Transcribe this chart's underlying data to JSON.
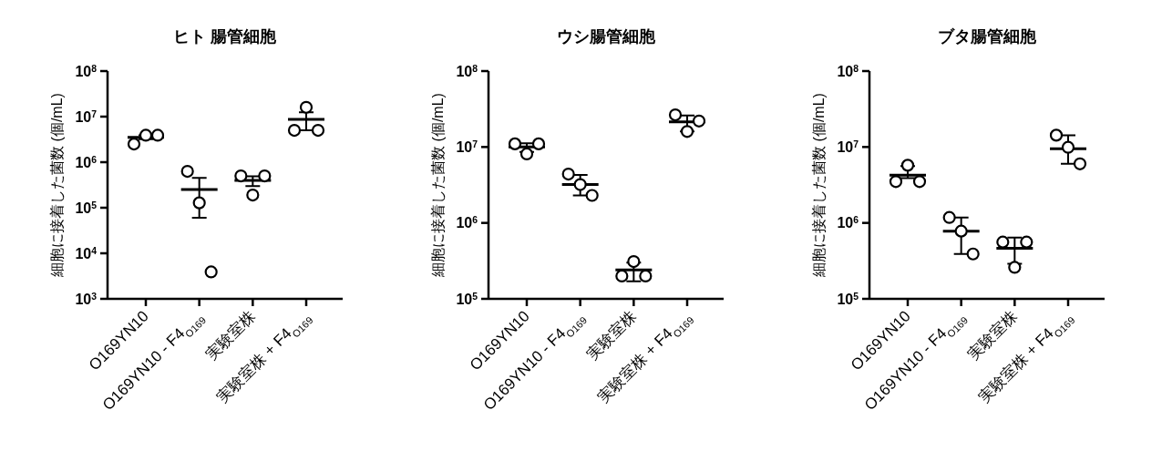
{
  "chart_data": [
    {
      "type": "scatter",
      "title": "ヒト 腸管細胞",
      "ylabel": "細胞に接着した菌数 (個/mL)",
      "categories": [
        "O169YN10",
        "O169YN10 - F4$_{O169}$",
        "実験室株",
        "実験室株 + F4$_{O169}$"
      ],
      "log": true,
      "ylim": [
        1000,
        100000000
      ],
      "yticks": [
        {
          "value": 1000,
          "label": "10$^{3}$"
        },
        {
          "value": 10000,
          "label": "10$^{4}$"
        },
        {
          "value": 100000,
          "label": "10$^{5}$"
        },
        {
          "value": 1000000,
          "label": "10$^{6}$"
        },
        {
          "value": 10000000,
          "label": "10$^{7}$"
        },
        {
          "value": 100000000,
          "label": "10$^{8}$"
        }
      ],
      "marker": "circle",
      "series": [
        {
          "type": "scatter",
          "color": "#000000",
          "x": [
            "O169YN10",
            "O169YN10",
            "O169YN10",
            "O169YN10 - F4$_{O169}$",
            "O169YN10 - F4$_{O169}$",
            "O169YN10 - F4$_{O169}$",
            "実験室株",
            "実験室株",
            "実験室株",
            "実験室株 + F4$_{O169}$",
            "実験室株 + F4$_{O169}$",
            "実験室株 + F4$_{O169}$"
          ],
          "values": [
            2500000,
            3900000,
            3900000,
            630000,
            128000,
            3900,
            500000,
            190000,
            500000,
            5000000,
            16000000,
            5000000
          ]
        },
        {
          "type": "box",
          "color": "#000000",
          "boxes": [
            {
              "low": 3200000,
              "q1": 3500000,
              "median": 3500000,
              "q3": 3500000,
              "high": 3900000
            },
            {
              "low": 60000,
              "q1": 250000,
              "median": 250000,
              "q3": 250000,
              "high": 450000
            },
            {
              "low": 300000,
              "q1": 400000,
              "median": 400000,
              "q3": 400000,
              "high": 490000
            },
            {
              "low": 5000000,
              "q1": 8700000,
              "median": 8700000,
              "q3": 8700000,
              "high": 12400000
            }
          ]
        }
      ]
    },
    {
      "type": "scatter",
      "title": "ウシ腸管細胞",
      "ylabel": "細胞に接着した菌数 (個/mL)",
      "categories": [
        "O169YN10",
        "O169YN10 - F4$_{O169}$",
        "実験室株",
        "実験室株 + F4$_{O169}$"
      ],
      "log": true,
      "ylim": [
        100000,
        100000000
      ],
      "yticks": [
        {
          "value": 100000,
          "label": "10$^{5}$"
        },
        {
          "value": 1000000,
          "label": "10$^{6}$"
        },
        {
          "value": 10000000,
          "label": "10$^{7}$"
        },
        {
          "value": 100000000,
          "label": "10$^{8}$"
        }
      ],
      "marker": "circle",
      "series": [
        {
          "type": "scatter",
          "color": "#000000",
          "x": [
            "O169YN10",
            "O169YN10",
            "O169YN10",
            "O169YN10 - F4$_{O169}$",
            "O169YN10 - F4$_{O169}$",
            "O169YN10 - F4$_{O169}$",
            "実験室株",
            "実験室株",
            "実験室株",
            "実験室株 + F4$_{O169}$",
            "実験室株 + F4$_{O169}$",
            "実験室株 + F4$_{O169}$"
          ],
          "values": [
            11000000,
            8100000,
            11000000,
            4400000,
            3200000,
            2300000,
            200000,
            310000,
            200000,
            26500000,
            16000000,
            22000000
          ]
        },
        {
          "type": "box",
          "color": "#000000",
          "boxes": [
            {
              "low": 8600000,
              "q1": 10000000,
              "median": 10000000,
              "q3": 10000000,
              "high": 11200000
            },
            {
              "low": 2300000,
              "q1": 3200000,
              "median": 3200000,
              "q3": 3200000,
              "high": 4300000
            },
            {
              "low": 170000,
              "q1": 240000,
              "median": 240000,
              "q3": 240000,
              "high": 300000
            },
            {
              "low": 16000000,
              "q1": 21500000,
              "median": 21500000,
              "q3": 21500000,
              "high": 26000000
            }
          ]
        }
      ]
    },
    {
      "type": "scatter",
      "title": "ブタ腸管細胞",
      "ylabel": "細胞に接着した菌数 (個/mL)",
      "categories": [
        "O169YN10",
        "O169YN10 - F4$_{O169}$",
        "実験室株",
        "実験室株 + F4$_{O169}$"
      ],
      "log": true,
      "ylim": [
        100000,
        100000000
      ],
      "yticks": [
        {
          "value": 100000,
          "label": "10$^{5}$"
        },
        {
          "value": 1000000,
          "label": "10$^{6}$"
        },
        {
          "value": 10000000,
          "label": "10$^{7}$"
        },
        {
          "value": 100000000,
          "label": "10$^{8}$"
        }
      ],
      "marker": "circle",
      "series": [
        {
          "type": "scatter",
          "color": "#000000",
          "x": [
            "O169YN10",
            "O169YN10",
            "O169YN10",
            "O169YN10 - F4$_{O169}$",
            "O169YN10 - F4$_{O169}$",
            "O169YN10 - F4$_{O169}$",
            "実験室株",
            "実験室株",
            "実験室株",
            "実験室株 + F4$_{O169}$",
            "実験室株 + F4$_{O169}$",
            "実験室株 + F4$_{O169}$"
          ],
          "values": [
            3500000,
            5750000,
            3500000,
            1180000,
            780000,
            390000,
            560000,
            260000,
            560000,
            14300000,
            9900000,
            6000000
          ]
        },
        {
          "type": "box",
          "color": "#000000",
          "boxes": [
            {
              "low": 3900000,
              "q1": 4250000,
              "median": 4250000,
              "q3": 4250000,
              "high": 5600000
            },
            {
              "low": 390000,
              "q1": 780000,
              "median": 780000,
              "q3": 780000,
              "high": 1180000
            },
            {
              "low": 290000,
              "q1": 465000,
              "median": 465000,
              "q3": 465000,
              "high": 640000
            },
            {
              "low": 6000000,
              "q1": 9500000,
              "median": 9500000,
              "q3": 9500000,
              "high": 14300000
            }
          ]
        }
      ]
    }
  ]
}
